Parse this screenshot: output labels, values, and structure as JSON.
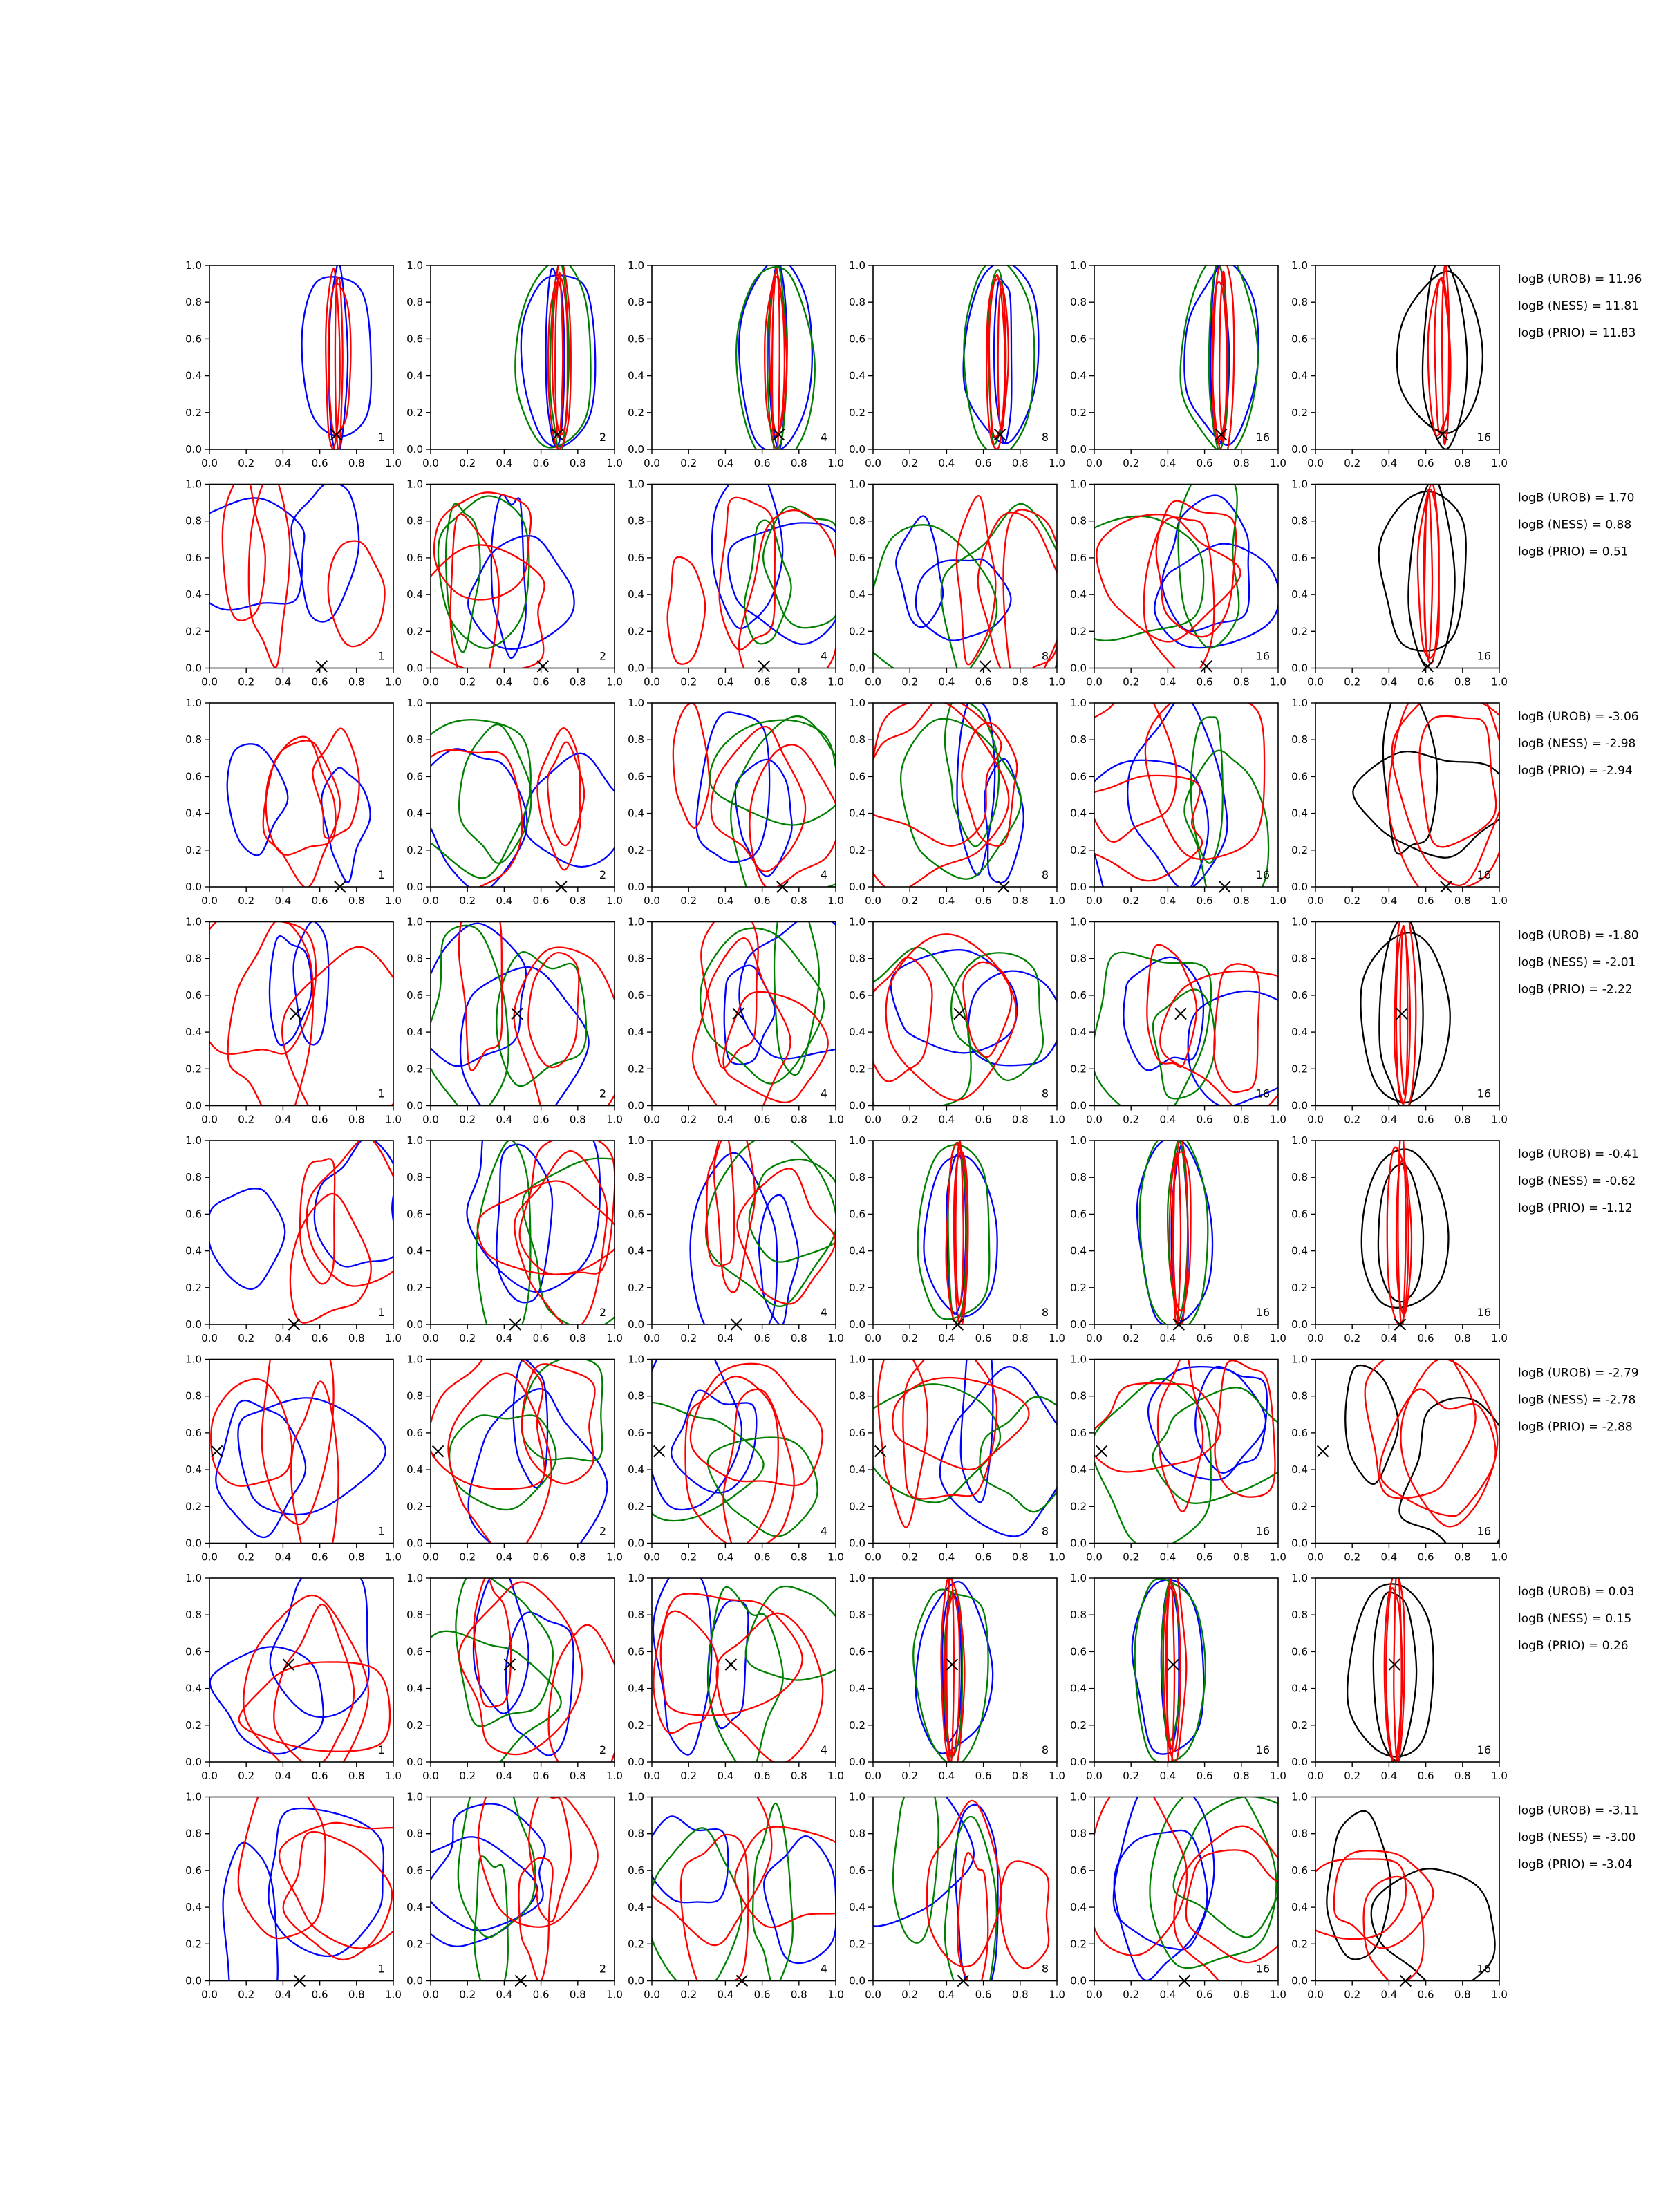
{
  "chart_data": {
    "type": "contour",
    "grid": {
      "rows": 8,
      "columns": 6
    },
    "panel_labels": [
      "1",
      "2",
      "4",
      "8",
      "16",
      "16"
    ],
    "xlim": [
      0,
      1
    ],
    "ylim": [
      0,
      1
    ],
    "xticks": [
      "0.0",
      "0.2",
      "0.4",
      "0.6",
      "0.8",
      "1.0"
    ],
    "yticks": [
      "0.0",
      "0.2",
      "0.4",
      "0.6",
      "0.8",
      "1.0"
    ],
    "grid_lines": false,
    "series_colors": {
      "blue": "#0000ff",
      "green": "#008000",
      "red": "#ff0000",
      "black": "#000000"
    },
    "rows": [
      {
        "marker": [
          0.69,
          0.08
        ],
        "stats": [
          "logB (UROB) = 11.96",
          "logB (NESS) = 11.81",
          "logB (PRIO) = 11.83"
        ]
      },
      {
        "marker": [
          0.61,
          0.01
        ],
        "stats": [
          "logB (UROB) = 1.70",
          "logB (NESS) = 0.88",
          "logB (PRIO) = 0.51"
        ]
      },
      {
        "marker": [
          0.71,
          0.0
        ],
        "stats": [
          "logB (UROB) = -3.06",
          "logB (NESS) = -2.98",
          "logB (PRIO) = -2.94"
        ]
      },
      {
        "marker": [
          0.47,
          0.5
        ],
        "stats": [
          "logB (UROB) = -1.80",
          "logB (NESS) = -2.01",
          "logB (PRIO) = -2.22"
        ]
      },
      {
        "marker": [
          0.46,
          0.0
        ],
        "stats": [
          "logB (UROB) = -0.41",
          "logB (NESS) = -0.62",
          "logB (PRIO) = -1.12"
        ]
      },
      {
        "marker": [
          0.04,
          0.5
        ],
        "stats": [
          "logB (UROB) = -2.79",
          "logB (NESS) = -2.78",
          "logB (PRIO) = -2.88"
        ]
      },
      {
        "marker": [
          0.43,
          0.53
        ],
        "stats": [
          "logB (UROB) = 0.03",
          "logB (NESS) = 0.15",
          "logB (PRIO) = 0.26"
        ]
      },
      {
        "marker": [
          0.49,
          0.0
        ],
        "stats": [
          "logB (UROB) = -3.11",
          "logB (NESS) = -3.00",
          "logB (PRIO) = -3.04"
        ]
      }
    ]
  }
}
